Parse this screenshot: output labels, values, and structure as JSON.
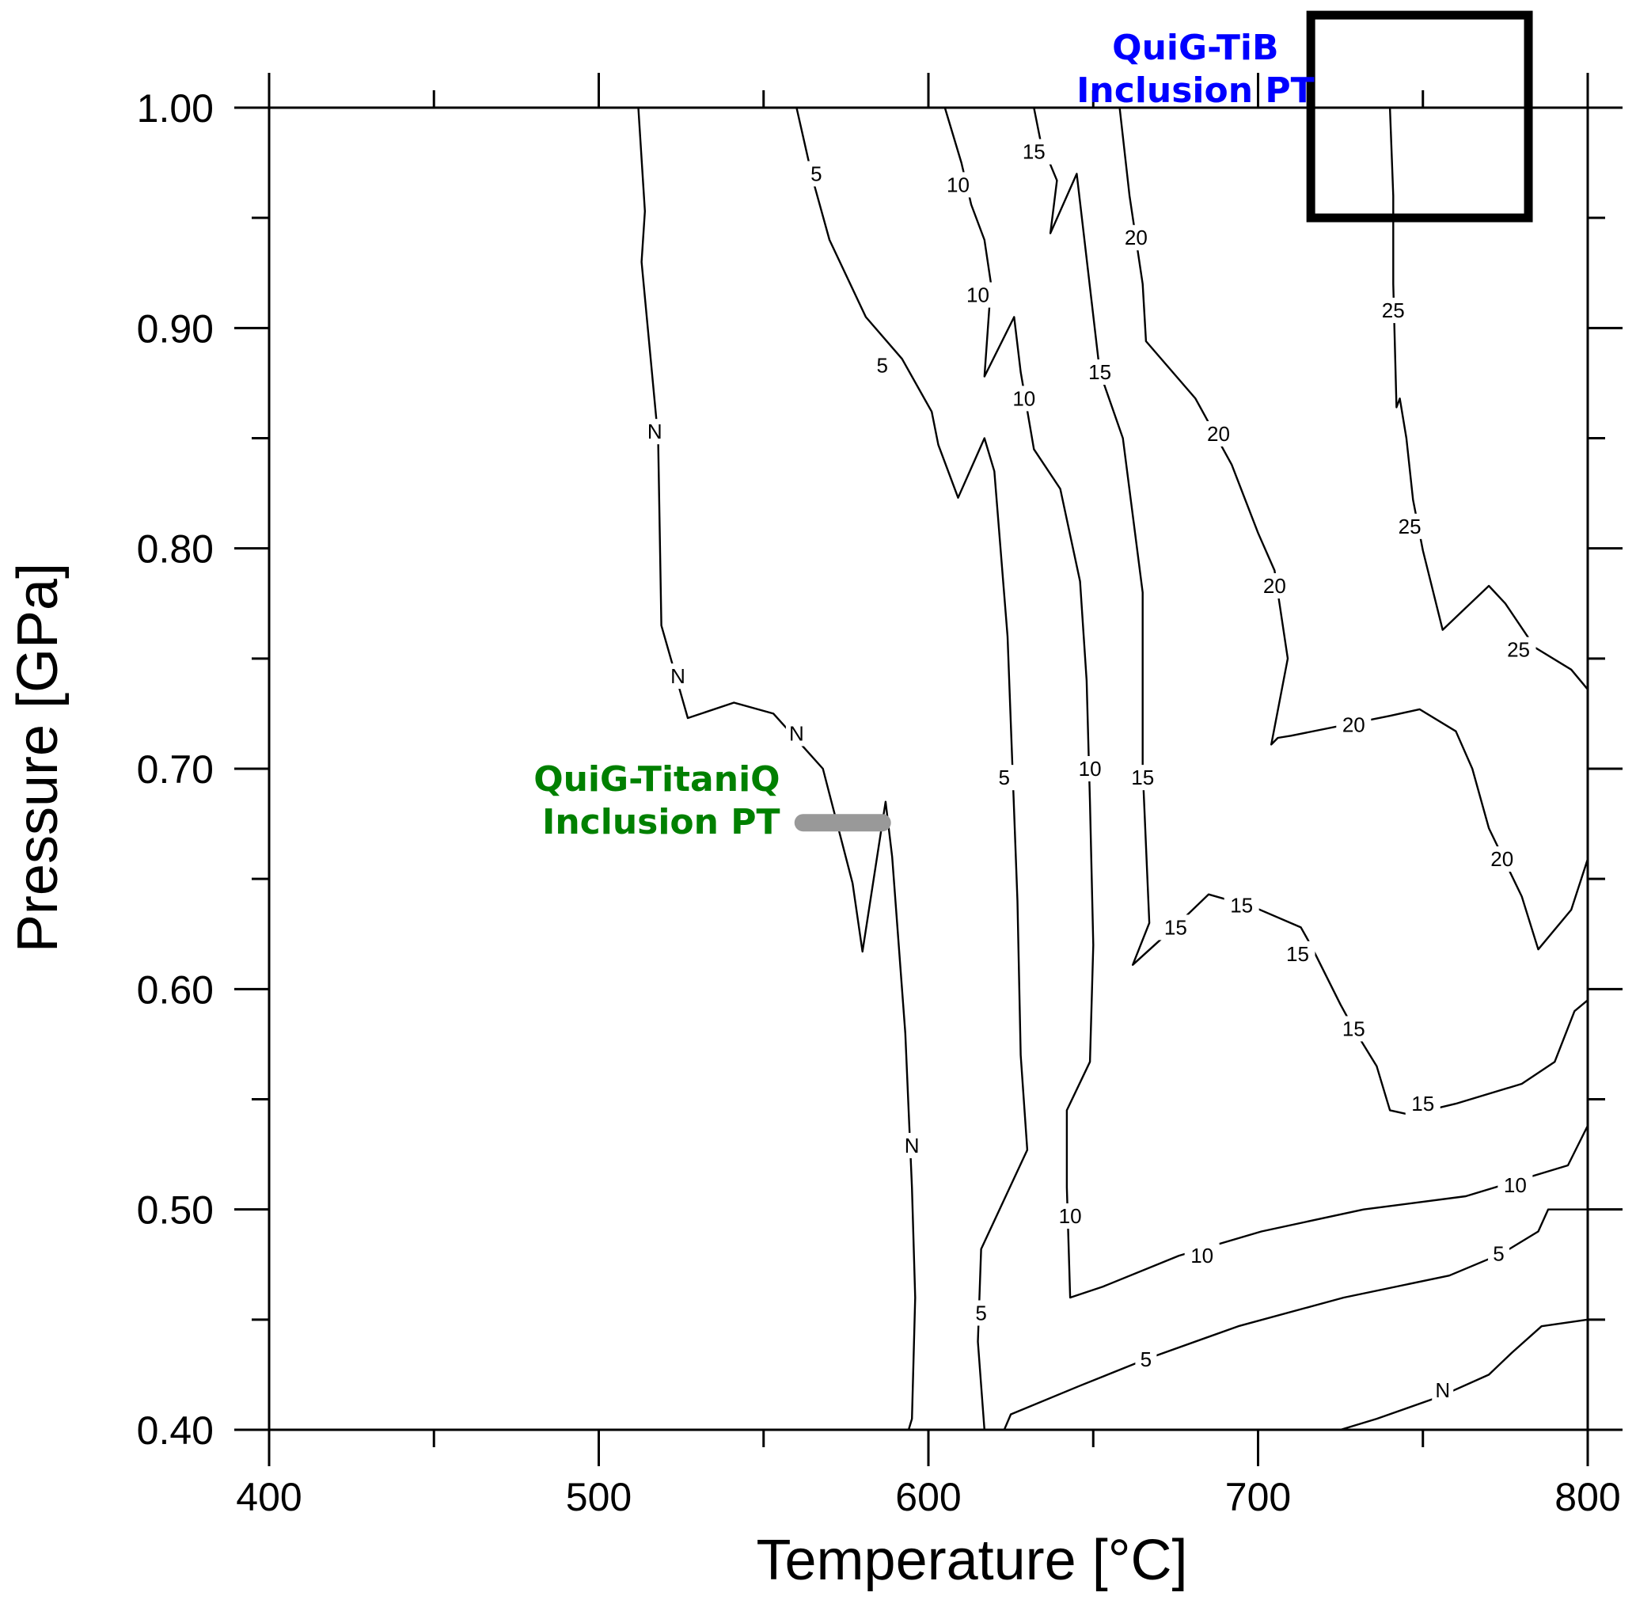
{
  "chart_data": {
    "type": "contour",
    "title": "",
    "xlabel": "Temperature [°C]",
    "ylabel": "Pressure [GPa]",
    "xlim": [
      400,
      800
    ],
    "ylim": [
      0.4,
      1.0
    ],
    "x_ticks": [
      {
        "value": 400,
        "label": "400"
      },
      {
        "value": 500,
        "label": "500"
      },
      {
        "value": 600,
        "label": "600"
      },
      {
        "value": 700,
        "label": "700"
      },
      {
        "value": 800,
        "label": "800"
      }
    ],
    "x_minor_ticks": [
      450,
      550,
      650,
      750
    ],
    "y_ticks": [
      {
        "value": 0.4,
        "label": "0.40"
      },
      {
        "value": 0.5,
        "label": "0.50"
      },
      {
        "value": 0.6,
        "label": "0.60"
      },
      {
        "value": 0.7,
        "label": "0.70"
      },
      {
        "value": 0.8,
        "label": "0.80"
      },
      {
        "value": 0.9,
        "label": "0.90"
      },
      {
        "value": 1.0,
        "label": "1.00"
      }
    ],
    "y_minor_ticks": [
      0.45,
      0.55,
      0.65,
      0.75,
      0.85,
      0.95
    ],
    "grid": false,
    "contours": [
      {
        "level": "N",
        "points": [
          [
            512,
            1.0
          ],
          [
            514,
            0.953
          ],
          [
            513,
            0.93
          ],
          [
            518,
            0.85
          ],
          [
            519,
            0.765
          ],
          [
            527,
            0.723
          ],
          [
            541,
            0.73
          ],
          [
            553,
            0.725
          ],
          [
            568,
            0.7
          ],
          [
            577,
            0.648
          ],
          [
            580,
            0.617
          ],
          [
            587,
            0.685
          ],
          [
            589,
            0.66
          ],
          [
            593,
            0.58
          ],
          [
            595,
            0.51
          ],
          [
            596,
            0.46
          ],
          [
            595,
            0.405
          ],
          [
            594,
            0.4
          ]
        ],
        "labels": [
          {
            "x": 517,
            "y": 0.853,
            "text": "N"
          },
          {
            "x": 524,
            "y": 0.742,
            "text": "N"
          },
          {
            "x": 560,
            "y": 0.716,
            "text": "N"
          },
          {
            "x": 595,
            "y": 0.529,
            "text": "N"
          }
        ]
      },
      {
        "level": "5",
        "points": [
          [
            560,
            1.0
          ],
          [
            565,
            0.967
          ],
          [
            570,
            0.94
          ],
          [
            581,
            0.905
          ],
          [
            592,
            0.886
          ],
          [
            601,
            0.862
          ],
          [
            603,
            0.847
          ],
          [
            609,
            0.823
          ],
          [
            617,
            0.85
          ],
          [
            620,
            0.835
          ],
          [
            624,
            0.76
          ],
          [
            627,
            0.64
          ],
          [
            628,
            0.57
          ],
          [
            630,
            0.527
          ],
          [
            616,
            0.482
          ],
          [
            615,
            0.44
          ],
          [
            617,
            0.4
          ]
        ],
        "labels": [
          {
            "x": 566,
            "y": 0.97,
            "text": "5"
          },
          {
            "x": 586,
            "y": 0.883,
            "text": "5"
          },
          {
            "x": 623,
            "y": 0.696,
            "text": "5"
          },
          {
            "x": 616,
            "y": 0.453,
            "text": "5"
          }
        ]
      },
      {
        "level": "5",
        "points": [
          [
            623,
            0.4
          ],
          [
            625,
            0.407
          ],
          [
            646,
            0.42
          ],
          [
            666,
            0.432
          ],
          [
            694,
            0.447
          ],
          [
            726,
            0.46
          ],
          [
            758,
            0.47
          ],
          [
            774,
            0.48
          ],
          [
            785,
            0.49
          ],
          [
            788,
            0.5
          ],
          [
            800,
            0.5
          ]
        ],
        "labels": [
          {
            "x": 666,
            "y": 0.432,
            "text": "5"
          },
          {
            "x": 773,
            "y": 0.48,
            "text": "5"
          }
        ]
      },
      {
        "level": "10",
        "points": [
          [
            605,
            1.0
          ],
          [
            610,
            0.975
          ],
          [
            613,
            0.956
          ],
          [
            617,
            0.94
          ],
          [
            619,
            0.92
          ],
          [
            617,
            0.878
          ],
          [
            626,
            0.905
          ],
          [
            628,
            0.88
          ],
          [
            632,
            0.845
          ],
          [
            640,
            0.827
          ],
          [
            646,
            0.785
          ],
          [
            648,
            0.74
          ],
          [
            649,
            0.685
          ],
          [
            650,
            0.62
          ],
          [
            649,
            0.567
          ],
          [
            642,
            0.545
          ],
          [
            642,
            0.51
          ],
          [
            643,
            0.46
          ],
          [
            653,
            0.465
          ],
          [
            676,
            0.479
          ],
          [
            701,
            0.49
          ],
          [
            732,
            0.5
          ],
          [
            763,
            0.506
          ],
          [
            794,
            0.52
          ],
          [
            800,
            0.538
          ]
        ],
        "labels": [
          {
            "x": 609,
            "y": 0.965,
            "text": "10"
          },
          {
            "x": 615,
            "y": 0.915,
            "text": "10"
          },
          {
            "x": 629,
            "y": 0.868,
            "text": "10"
          },
          {
            "x": 649,
            "y": 0.7,
            "text": "10"
          },
          {
            "x": 643,
            "y": 0.497,
            "text": "10"
          },
          {
            "x": 683,
            "y": 0.479,
            "text": "10"
          },
          {
            "x": 778,
            "y": 0.511,
            "text": "10"
          }
        ]
      },
      {
        "level": "15",
        "points": [
          [
            632,
            1.0
          ],
          [
            634,
            0.985
          ],
          [
            639,
            0.967
          ],
          [
            637,
            0.943
          ],
          [
            645,
            0.97
          ],
          [
            652,
            0.88
          ],
          [
            659,
            0.85
          ],
          [
            665,
            0.78
          ],
          [
            665,
            0.7
          ],
          [
            667,
            0.63
          ],
          [
            662,
            0.611
          ],
          [
            676,
            0.63
          ],
          [
            685,
            0.643
          ],
          [
            699,
            0.637
          ],
          [
            713,
            0.628
          ],
          [
            716,
            0.62
          ],
          [
            725,
            0.593
          ],
          [
            729,
            0.582
          ],
          [
            736,
            0.565
          ],
          [
            740,
            0.545
          ],
          [
            746,
            0.543
          ],
          [
            760,
            0.548
          ],
          [
            780,
            0.557
          ],
          [
            790,
            0.567
          ],
          [
            796,
            0.59
          ],
          [
            800,
            0.595
          ]
        ],
        "labels": [
          {
            "x": 632,
            "y": 0.98,
            "text": "15"
          },
          {
            "x": 652,
            "y": 0.88,
            "text": "15"
          },
          {
            "x": 665,
            "y": 0.696,
            "text": "15"
          },
          {
            "x": 675,
            "y": 0.628,
            "text": "15"
          },
          {
            "x": 695,
            "y": 0.638,
            "text": "15"
          },
          {
            "x": 712,
            "y": 0.616,
            "text": "15"
          },
          {
            "x": 729,
            "y": 0.582,
            "text": "15"
          },
          {
            "x": 750,
            "y": 0.548,
            "text": "15"
          }
        ]
      },
      {
        "level": "20",
        "points": [
          [
            658,
            1.0
          ],
          [
            661,
            0.96
          ],
          [
            665,
            0.92
          ],
          [
            666,
            0.894
          ],
          [
            681,
            0.868
          ],
          [
            692,
            0.838
          ],
          [
            700,
            0.807
          ],
          [
            705,
            0.79
          ],
          [
            709,
            0.75
          ],
          [
            704,
            0.711
          ],
          [
            706,
            0.714
          ],
          [
            710,
            0.715
          ],
          [
            740,
            0.724
          ],
          [
            749,
            0.727
          ],
          [
            760,
            0.717
          ],
          [
            765,
            0.7
          ],
          [
            770,
            0.673
          ],
          [
            780,
            0.642
          ],
          [
            785,
            0.618
          ],
          [
            795,
            0.636
          ],
          [
            800,
            0.659
          ]
        ],
        "labels": [
          {
            "x": 663,
            "y": 0.941,
            "text": "20"
          },
          {
            "x": 688,
            "y": 0.852,
            "text": "20"
          },
          {
            "x": 705,
            "y": 0.783,
            "text": "20"
          },
          {
            "x": 729,
            "y": 0.72,
            "text": "20"
          },
          {
            "x": 774,
            "y": 0.659,
            "text": "20"
          }
        ]
      },
      {
        "level": "25",
        "points": [
          [
            740,
            1.0
          ],
          [
            741,
            0.96
          ],
          [
            741,
            0.92
          ],
          [
            742,
            0.864
          ],
          [
            743,
            0.868
          ],
          [
            745,
            0.85
          ],
          [
            747,
            0.822
          ],
          [
            750,
            0.799
          ],
          [
            756,
            0.763
          ],
          [
            763,
            0.773
          ],
          [
            770,
            0.783
          ],
          [
            775,
            0.775
          ],
          [
            784,
            0.755
          ],
          [
            795,
            0.745
          ],
          [
            800,
            0.736
          ]
        ],
        "labels": [
          {
            "x": 741,
            "y": 0.908,
            "text": "25"
          },
          {
            "x": 746,
            "y": 0.81,
            "text": "25"
          },
          {
            "x": 779,
            "y": 0.754,
            "text": "25"
          }
        ]
      },
      {
        "level": "N",
        "points": [
          [
            725,
            0.4
          ],
          [
            736,
            0.405
          ],
          [
            755,
            0.415
          ],
          [
            770,
            0.425
          ],
          [
            777,
            0.435
          ],
          [
            786,
            0.447
          ],
          [
            800,
            0.45
          ]
        ],
        "labels": [
          {
            "x": 756,
            "y": 0.418,
            "text": "N"
          }
        ]
      }
    ],
    "annotations": [
      {
        "lines": [
          "QuiG-TitaniQ",
          "Inclusion PT"
        ],
        "color": "#008000",
        "anchor": "end",
        "x": 555,
        "y": 0.69,
        "marker": {
          "type": "segment",
          "x0": 562,
          "x1": 586,
          "y": 0.6755,
          "color": "#999999"
        }
      },
      {
        "lines": [
          "QuiG-TiB",
          "Inclusion PT"
        ],
        "color": "#0000ff",
        "anchor": "middle",
        "x": 681,
        "y": 1.022,
        "marker": {
          "type": "box",
          "x0": 716,
          "x1": 782,
          "y0": 0.95,
          "y1": 1.042,
          "color": "#000000"
        }
      }
    ]
  }
}
